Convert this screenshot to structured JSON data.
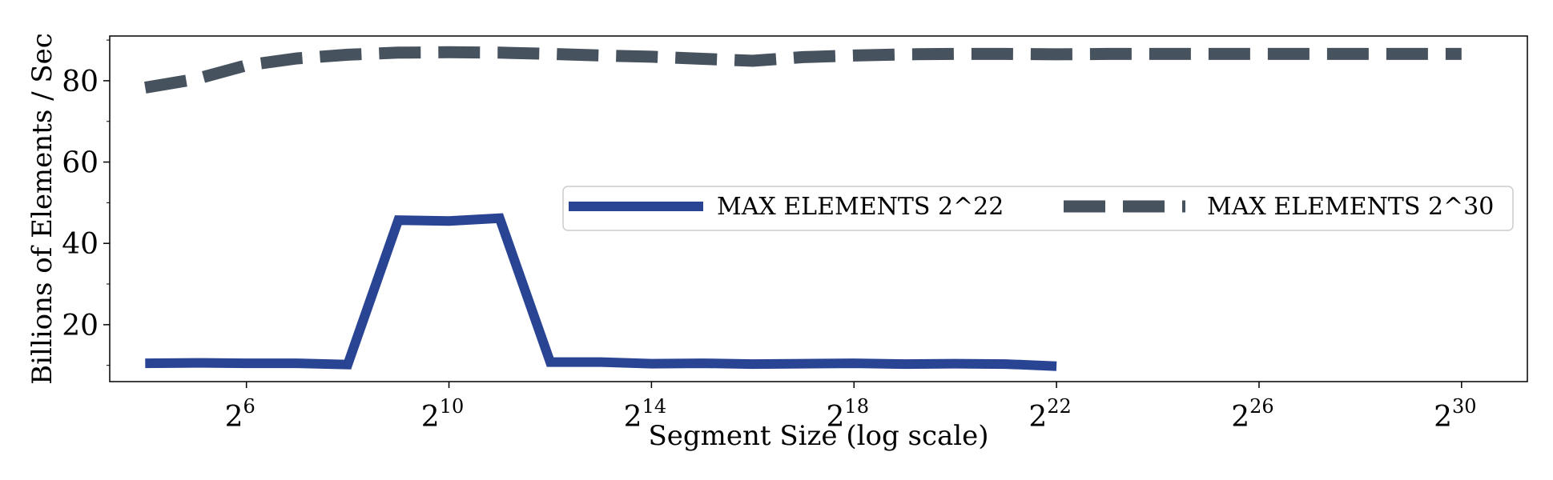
{
  "chart_data": {
    "type": "line",
    "title": "",
    "xlabel": "Segment Size (log scale)",
    "ylabel": "Billions of Elements / Sec",
    "x_scale": "log2",
    "xlim_exponent": [
      3.3,
      31.3
    ],
    "ylim": [
      6,
      91
    ],
    "x_ticks": [
      {
        "base": "2",
        "exp": "6",
        "value": 6
      },
      {
        "base": "2",
        "exp": "10",
        "value": 10
      },
      {
        "base": "2",
        "exp": "14",
        "value": 14
      },
      {
        "base": "2",
        "exp": "18",
        "value": 18
      },
      {
        "base": "2",
        "exp": "22",
        "value": 22
      },
      {
        "base": "2",
        "exp": "26",
        "value": 26
      },
      {
        "base": "2",
        "exp": "30",
        "value": 30
      }
    ],
    "y_ticks": [
      {
        "label": "20",
        "value": 20
      },
      {
        "label": "40",
        "value": 40
      },
      {
        "label": "60",
        "value": 60
      },
      {
        "label": "80",
        "value": 80
      }
    ],
    "y_minor_ticks": [
      10,
      30,
      50,
      70,
      90
    ],
    "legend_position": "center-right",
    "series": [
      {
        "name": "MAX ELEMENTS 2^22",
        "color": "#2a4494",
        "style": "solid",
        "x_exp": [
          4,
          5,
          6,
          7,
          8,
          9,
          10,
          11,
          12,
          13,
          14,
          15,
          16,
          17,
          18,
          19,
          20,
          21,
          22
        ],
        "values": [
          10.5,
          10.6,
          10.5,
          10.5,
          10.2,
          45.7,
          45.5,
          46.2,
          10.8,
          10.8,
          10.4,
          10.5,
          10.3,
          10.4,
          10.5,
          10.3,
          10.4,
          10.3,
          9.8
        ]
      },
      {
        "name": "MAX ELEMENTS 2^30",
        "color": "#47525f",
        "style": "dashed",
        "x_exp": [
          4,
          5,
          6,
          7,
          8,
          9,
          10,
          11,
          12,
          13,
          14,
          15,
          16,
          17,
          18,
          19,
          20,
          21,
          22,
          23,
          24,
          25,
          26,
          27,
          28,
          29,
          30
        ],
        "values": [
          78.3,
          80.4,
          83.8,
          85.5,
          86.4,
          86.9,
          87.0,
          86.9,
          86.6,
          86.2,
          85.9,
          85.4,
          84.9,
          85.8,
          86.2,
          86.5,
          86.6,
          86.6,
          86.5,
          86.6,
          86.6,
          86.6,
          86.6,
          86.6,
          86.6,
          86.6,
          86.6
        ]
      }
    ]
  }
}
